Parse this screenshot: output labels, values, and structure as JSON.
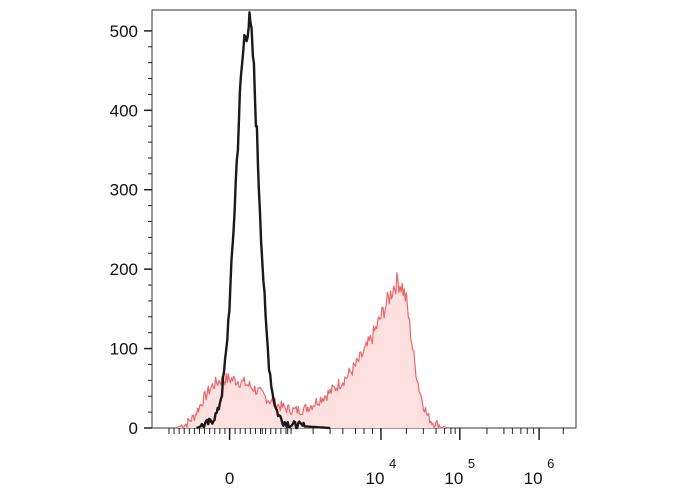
{
  "chart_data": {
    "type": "area",
    "title": "",
    "xlabel": "",
    "ylabel": "",
    "x_scale": "biexponential",
    "ylim": [
      0,
      520
    ],
    "grid": false,
    "legend": "none",
    "y_ticks": [
      0,
      100,
      200,
      300,
      400,
      500
    ],
    "x_ticks": [
      {
        "base": "0",
        "exp": ""
      },
      {
        "base": "10",
        "exp": "4"
      },
      {
        "base": "10",
        "exp": "5"
      },
      {
        "base": "10",
        "exp": "6"
      }
    ],
    "series": [
      {
        "color": "#1a1a1a",
        "fill": "none",
        "points": [
          [
            0.105,
            0
          ],
          [
            0.12,
            3
          ],
          [
            0.14,
            8
          ],
          [
            0.155,
            20
          ],
          [
            0.165,
            45
          ],
          [
            0.175,
            95
          ],
          [
            0.185,
            175
          ],
          [
            0.195,
            280
          ],
          [
            0.205,
            390
          ],
          [
            0.212,
            455
          ],
          [
            0.218,
            490
          ],
          [
            0.223,
            505
          ],
          [
            0.228,
            510
          ],
          [
            0.232,
            500
          ],
          [
            0.238,
            470
          ],
          [
            0.245,
            395
          ],
          [
            0.252,
            310
          ],
          [
            0.26,
            215
          ],
          [
            0.268,
            135
          ],
          [
            0.276,
            80
          ],
          [
            0.284,
            45
          ],
          [
            0.292,
            25
          ],
          [
            0.3,
            15
          ],
          [
            0.31,
            8
          ],
          [
            0.33,
            4
          ],
          [
            0.36,
            2
          ],
          [
            0.39,
            1
          ],
          [
            0.42,
            0
          ]
        ]
      },
      {
        "color": "#e8686a",
        "fill": "#fde0df",
        "points": [
          [
            0.055,
            0
          ],
          [
            0.08,
            5
          ],
          [
            0.1,
            15
          ],
          [
            0.12,
            35
          ],
          [
            0.14,
            52
          ],
          [
            0.16,
            60
          ],
          [
            0.18,
            62
          ],
          [
            0.2,
            60
          ],
          [
            0.22,
            56
          ],
          [
            0.24,
            50
          ],
          [
            0.26,
            42
          ],
          [
            0.28,
            34
          ],
          [
            0.3,
            28
          ],
          [
            0.32,
            24
          ],
          [
            0.34,
            22
          ],
          [
            0.36,
            24
          ],
          [
            0.38,
            30
          ],
          [
            0.4,
            38
          ],
          [
            0.42,
            45
          ],
          [
            0.44,
            55
          ],
          [
            0.46,
            65
          ],
          [
            0.48,
            78
          ],
          [
            0.5,
            95
          ],
          [
            0.52,
            115
          ],
          [
            0.54,
            140
          ],
          [
            0.56,
            165
          ],
          [
            0.57,
            178
          ],
          [
            0.58,
            185
          ],
          [
            0.59,
            178
          ],
          [
            0.6,
            160
          ],
          [
            0.61,
            120
          ],
          [
            0.62,
            80
          ],
          [
            0.63,
            50
          ],
          [
            0.64,
            30
          ],
          [
            0.65,
            15
          ],
          [
            0.66,
            8
          ],
          [
            0.68,
            3
          ],
          [
            0.7,
            0
          ]
        ]
      }
    ]
  }
}
